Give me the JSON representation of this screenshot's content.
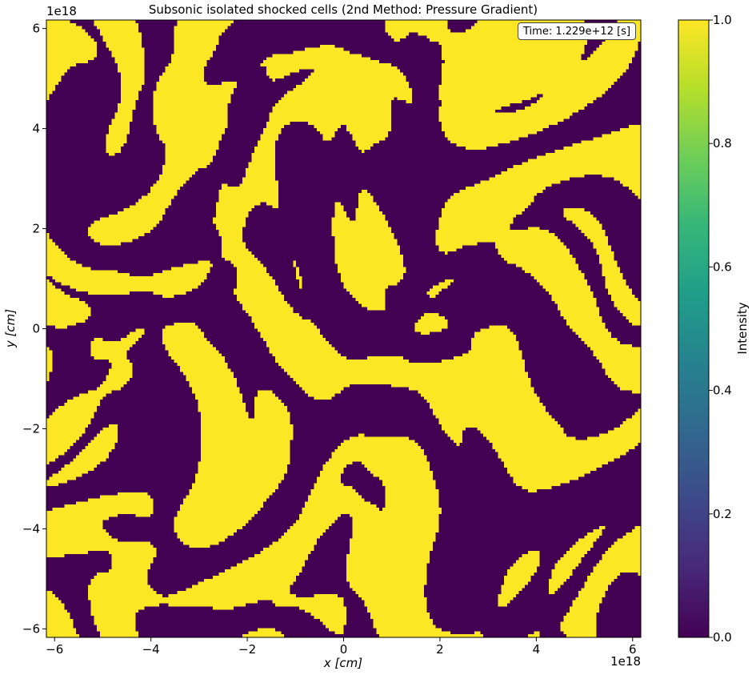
{
  "chart_data": {
    "type": "heatmap",
    "title": "Subsonic isolated shocked cells (2nd Method: Pressure Gradient)",
    "xlabel": "x [cm]",
    "ylabel": "y [cm]",
    "x_offset_label": "1e18",
    "y_offset_label": "1e18",
    "xlim": [
      -6.17,
      6.17
    ],
    "ylim": [
      -6.17,
      6.17
    ],
    "x_ticks": [
      -6,
      -4,
      -2,
      0,
      2,
      4,
      6
    ],
    "x_tick_labels": [
      "−6",
      "−4",
      "−2",
      "0",
      "2",
      "4",
      "6"
    ],
    "y_ticks": [
      -6,
      -4,
      -2,
      0,
      2,
      4,
      6
    ],
    "y_tick_labels": [
      "−6",
      "−4",
      "−2",
      "0",
      "2",
      "4",
      "6"
    ],
    "annotation": "Time: 1.229e+12 [s]",
    "colorbar": {
      "label": "Intensity",
      "range": [
        0.0,
        1.0
      ],
      "ticks": [
        0.0,
        0.2,
        0.4,
        0.6,
        0.8,
        1.0
      ],
      "tick_labels": [
        "0.0",
        "0.2",
        "0.4",
        "0.6",
        "0.8",
        "1.0"
      ],
      "colormap": "viridis"
    },
    "values_description": "binary field: 1 = isolated shocked cell (yellow), 0 = not shocked (purple)",
    "grid": false
  },
  "colors": {
    "low": "#440154",
    "high": "#fde725",
    "viridis_stops": [
      "#440154",
      "#482878",
      "#3e4989",
      "#31688e",
      "#26828e",
      "#1f9e89",
      "#35b779",
      "#6ece58",
      "#b5de2b",
      "#fde725"
    ]
  }
}
